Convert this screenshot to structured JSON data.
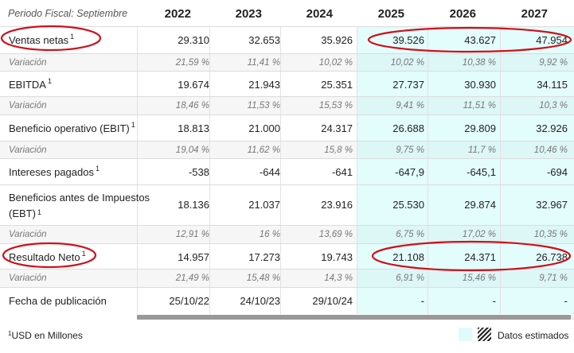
{
  "header": {
    "period_label": "Periodo Fiscal: Septiembre",
    "years": [
      "2022",
      "2023",
      "2024",
      "2025",
      "2026",
      "2027"
    ]
  },
  "rows": [
    {
      "label": "Ventas netas",
      "sup": "1",
      "variation": false,
      "values": [
        "29.310",
        "32.653",
        "35.926",
        "39.526",
        "43.627",
        "47.954"
      ]
    },
    {
      "label": "Variación",
      "sup": "",
      "variation": true,
      "values": [
        "21,59 %",
        "11,41 %",
        "10,02 %",
        "10,02 %",
        "10,38 %",
        "9,92 %"
      ]
    },
    {
      "label": "EBITDA",
      "sup": "1",
      "variation": false,
      "values": [
        "19.674",
        "21.943",
        "25.351",
        "27.737",
        "30.930",
        "34.115"
      ]
    },
    {
      "label": "Variación",
      "sup": "",
      "variation": true,
      "values": [
        "18,46 %",
        "11,53 %",
        "15,53 %",
        "9,41 %",
        "11,51 %",
        "10,3 %"
      ]
    },
    {
      "label": "Beneficio operativo (EBIT)",
      "sup": "1",
      "variation": false,
      "values": [
        "18.813",
        "21.000",
        "24.317",
        "26.688",
        "29.809",
        "32.926"
      ]
    },
    {
      "label": "Variación",
      "sup": "",
      "variation": true,
      "values": [
        "19,04 %",
        "11,62 %",
        "15,8 %",
        "9,75 %",
        "11,7 %",
        "10,46 %"
      ]
    },
    {
      "label": "Intereses pagados",
      "sup": "1",
      "variation": false,
      "values": [
        "-538",
        "-644",
        "-641",
        "-647,9",
        "-645,1",
        "-694"
      ]
    },
    {
      "label_line1": "Beneficios antes de Impuestos",
      "label_line2": "(EBT)",
      "sup": "1",
      "variation": false,
      "values": [
        "18.136",
        "21.037",
        "23.916",
        "25.530",
        "29.874",
        "32.967"
      ]
    },
    {
      "label": "Variación",
      "sup": "",
      "variation": true,
      "values": [
        "12,91 %",
        "16 %",
        "13,69 %",
        "6,75 %",
        "17,02 %",
        "10,35 %"
      ]
    },
    {
      "label": "Resultado Neto",
      "sup": "1",
      "variation": false,
      "values": [
        "14.957",
        "17.273",
        "19.743",
        "21.108",
        "24.371",
        "26.738"
      ]
    },
    {
      "label": "Variación",
      "sup": "",
      "variation": true,
      "values": [
        "21,49 %",
        "15,48 %",
        "14,3 %",
        "6,91 %",
        "15,46 %",
        "9,71 %"
      ]
    },
    {
      "label": "Fecha de publicación",
      "sup": "",
      "variation": false,
      "values": [
        "25/10/22",
        "24/10/23",
        "29/10/24",
        "-",
        "-",
        "-"
      ]
    }
  ],
  "footer": {
    "footnote_sup": "1",
    "footnote_text": "USD en Millones",
    "legend_label": "Datos estimados"
  },
  "colors": {
    "estimate_bg": "#e3fcfc",
    "annotation_red": "#d0101a"
  }
}
